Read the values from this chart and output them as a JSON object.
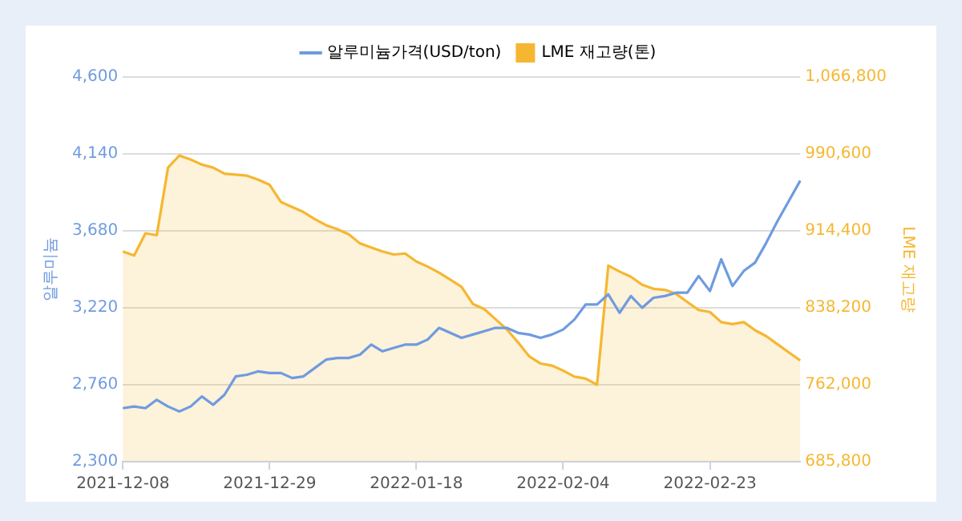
{
  "chart_data": {
    "type": "line",
    "categories": [
      "2021-12-08",
      null,
      null,
      null,
      null,
      null,
      null,
      null,
      null,
      null,
      null,
      null,
      null,
      "2021-12-29",
      null,
      null,
      null,
      null,
      null,
      null,
      null,
      null,
      null,
      null,
      null,
      null,
      "2022-01-18",
      null,
      null,
      null,
      null,
      null,
      null,
      null,
      null,
      null,
      null,
      null,
      null,
      "2022-02-04",
      null,
      null,
      null,
      null,
      null,
      null,
      null,
      null,
      null,
      null,
      null,
      null,
      "2022-02-23",
      null,
      null,
      null,
      null,
      null,
      null,
      null,
      null
    ],
    "series": [
      {
        "name": "알루미늄가격(USD/ton)",
        "type": "line",
        "color": "#6f9be0",
        "values": [
          2620,
          2630,
          2620,
          2670,
          2630,
          2600,
          2630,
          2690,
          2640,
          2700,
          2810,
          2820,
          2840,
          2830,
          2830,
          2800,
          2810,
          2860,
          2910,
          2920,
          2920,
          2940,
          3000,
          2960,
          2980,
          3000,
          3000,
          3030,
          3100,
          3070,
          3040,
          3060,
          3080,
          3100,
          3100,
          3070,
          3060,
          3040,
          3060,
          3090,
          3150,
          3240,
          3240,
          3300,
          3190,
          3290,
          3220,
          3280,
          3290,
          3310,
          3310,
          3410,
          3320,
          3510,
          3350,
          3440,
          3490,
          3610,
          3740,
          3860,
          3980
        ]
      },
      {
        "name": "LME 재고량(톤)",
        "type": "area",
        "axis": "y2",
        "color": "#f5b731",
        "values": [
          894000,
          890000,
          912000,
          910000,
          977000,
          989000,
          985000,
          980000,
          977000,
          971000,
          970000,
          969000,
          965000,
          960000,
          943000,
          938000,
          933000,
          926000,
          920000,
          916000,
          911000,
          902000,
          898000,
          894000,
          891000,
          892000,
          884000,
          879000,
          873000,
          866000,
          859000,
          842000,
          837000,
          827000,
          817000,
          804000,
          790000,
          783000,
          781000,
          776000,
          770000,
          768000,
          762000,
          880000,
          874000,
          869000,
          861000,
          857000,
          856000,
          852000,
          844000,
          836000,
          834000,
          824000,
          822000,
          824000,
          816000,
          810000,
          802000,
          794000,
          786000
        ]
      }
    ],
    "ylabel": "알루미늄",
    "y2label": "LME 재고량",
    "ylim": [
      2300,
      4600
    ],
    "yticks": [
      {
        "value": 2300,
        "label": "2,300"
      },
      {
        "value": 2760,
        "label": "2,760"
      },
      {
        "value": 3220,
        "label": "3,220"
      },
      {
        "value": 3680,
        "label": "3,680"
      },
      {
        "value": 4140,
        "label": "4,140"
      },
      {
        "value": 4600,
        "label": "4,600"
      }
    ],
    "y2lim": [
      685800,
      1066800
    ],
    "y2ticks": [
      {
        "value": 685800,
        "label": "685,800"
      },
      {
        "value": 762000,
        "label": "762,000"
      },
      {
        "value": 838200,
        "label": "838,200"
      },
      {
        "value": 914400,
        "label": "914,400"
      },
      {
        "value": 990600,
        "label": "990,600"
      },
      {
        "value": 1066800,
        "label": "1,066,800"
      }
    ],
    "grid": "y",
    "legend": "top",
    "marker": "none",
    "line_style": "solid"
  }
}
